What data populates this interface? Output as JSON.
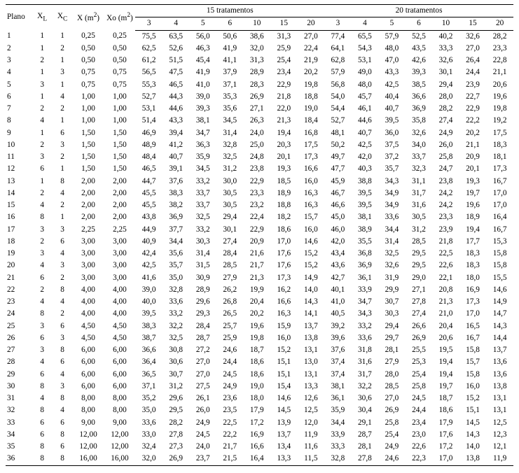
{
  "header": {
    "plano": "Plano",
    "xl": "X",
    "xl_sub": "L",
    "xc": "X",
    "xc_sub": "C",
    "xm": "X (m",
    "xm_sup": "2",
    "xm_tail": ")",
    "xo": "Xo (m",
    "xo_sup": "2",
    "xo_tail": ")",
    "g15": "15 tratamentos",
    "g20": "20 tratamentos",
    "sub": [
      "3",
      "4",
      "5",
      "6",
      "10",
      "15",
      "20",
      "3",
      "4",
      "5",
      "6",
      "10",
      "15",
      "20"
    ]
  },
  "rows": [
    {
      "plano": "1",
      "xl": "1",
      "xc": "1",
      "xm": "0,25",
      "xo": "0,25",
      "v": [
        "75,5",
        "63,5",
        "56,0",
        "50,6",
        "38,6",
        "31,3",
        "27,0",
        "77,4",
        "65,5",
        "57,9",
        "52,5",
        "40,2",
        "32,6",
        "28,2"
      ]
    },
    {
      "plano": "2",
      "xl": "1",
      "xc": "2",
      "xm": "0,50",
      "xo": "0,50",
      "v": [
        "62,5",
        "52,6",
        "46,3",
        "41,9",
        "32,0",
        "25,9",
        "22,4",
        "64,1",
        "54,3",
        "48,0",
        "43,5",
        "33,3",
        "27,0",
        "23,3"
      ]
    },
    {
      "plano": "3",
      "xl": "2",
      "xc": "1",
      "xm": "0,50",
      "xo": "0,50",
      "v": [
        "61,2",
        "51,5",
        "45,4",
        "41,1",
        "31,3",
        "25,4",
        "21,9",
        "62,8",
        "53,1",
        "47,0",
        "42,6",
        "32,6",
        "26,4",
        "22,8"
      ]
    },
    {
      "plano": "4",
      "xl": "1",
      "xc": "3",
      "xm": "0,75",
      "xo": "0,75",
      "v": [
        "56,5",
        "47,5",
        "41,9",
        "37,9",
        "28,9",
        "23,4",
        "20,2",
        "57,9",
        "49,0",
        "43,3",
        "39,3",
        "30,1",
        "24,4",
        "21,1"
      ]
    },
    {
      "plano": "5",
      "xl": "3",
      "xc": "1",
      "xm": "0,75",
      "xo": "0,75",
      "v": [
        "55,3",
        "46,5",
        "41,0",
        "37,1",
        "28,3",
        "22,9",
        "19,8",
        "56,8",
        "48,0",
        "42,5",
        "38,5",
        "29,4",
        "23,9",
        "20,6"
      ]
    },
    {
      "plano": "6",
      "xl": "1",
      "xc": "4",
      "xm": "1,00",
      "xo": "1,00",
      "v": [
        "52,7",
        "44,3",
        "39,0",
        "35,3",
        "26,9",
        "21,8",
        "18,8",
        "54,0",
        "45,7",
        "40,4",
        "36,6",
        "28,0",
        "22,7",
        "19,6"
      ]
    },
    {
      "plano": "7",
      "xl": "2",
      "xc": "2",
      "xm": "1,00",
      "xo": "1,00",
      "v": [
        "53,1",
        "44,6",
        "39,3",
        "35,6",
        "27,1",
        "22,0",
        "19,0",
        "54,4",
        "46,1",
        "40,7",
        "36,9",
        "28,2",
        "22,9",
        "19,8"
      ]
    },
    {
      "plano": "8",
      "xl": "4",
      "xc": "1",
      "xm": "1,00",
      "xo": "1,00",
      "v": [
        "51,4",
        "43,3",
        "38,1",
        "34,5",
        "26,3",
        "21,3",
        "18,4",
        "52,7",
        "44,6",
        "39,5",
        "35,8",
        "27,4",
        "22,2",
        "19,2"
      ]
    },
    {
      "plano": "9",
      "xl": "1",
      "xc": "6",
      "xm": "1,50",
      "xo": "1,50",
      "v": [
        "46,9",
        "39,4",
        "34,7",
        "31,4",
        "24,0",
        "19,4",
        "16,8",
        "48,1",
        "40,7",
        "36,0",
        "32,6",
        "24,9",
        "20,2",
        "17,5"
      ]
    },
    {
      "plano": "10",
      "xl": "2",
      "xc": "3",
      "xm": "1,50",
      "xo": "1,50",
      "v": [
        "48,9",
        "41,2",
        "36,3",
        "32,8",
        "25,0",
        "20,3",
        "17,5",
        "50,2",
        "42,5",
        "37,5",
        "34,0",
        "26,0",
        "21,1",
        "18,3"
      ]
    },
    {
      "plano": "11",
      "xl": "3",
      "xc": "2",
      "xm": "1,50",
      "xo": "1,50",
      "v": [
        "48,4",
        "40,7",
        "35,9",
        "32,5",
        "24,8",
        "20,1",
        "17,3",
        "49,7",
        "42,0",
        "37,2",
        "33,7",
        "25,8",
        "20,9",
        "18,1"
      ]
    },
    {
      "plano": "12",
      "xl": "6",
      "xc": "1",
      "xm": "1,50",
      "xo": "1,50",
      "v": [
        "46,5",
        "39,1",
        "34,5",
        "31,2",
        "23,8",
        "19,3",
        "16,6",
        "47,7",
        "40,3",
        "35,7",
        "32,3",
        "24,7",
        "20,1",
        "17,3"
      ]
    },
    {
      "plano": "13",
      "xl": "1",
      "xc": "8",
      "xm": "2,00",
      "xo": "2,00",
      "v": [
        "44,7",
        "37,6",
        "33,2",
        "30,0",
        "22,9",
        "18,5",
        "16,0",
        "45,9",
        "38,8",
        "34,3",
        "31,1",
        "23,8",
        "19,3",
        "16,7"
      ]
    },
    {
      "plano": "14",
      "xl": "2",
      "xc": "4",
      "xm": "2,00",
      "xo": "2,00",
      "v": [
        "45,5",
        "38,3",
        "33,7",
        "30,5",
        "23,3",
        "18,9",
        "16,3",
        "46,7",
        "39,5",
        "34,9",
        "31,7",
        "24,2",
        "19,7",
        "17,0"
      ]
    },
    {
      "plano": "15",
      "xl": "4",
      "xc": "2",
      "xm": "2,00",
      "xo": "2,00",
      "v": [
        "45,5",
        "38,2",
        "33,7",
        "30,5",
        "23,2",
        "18,8",
        "16,3",
        "46,6",
        "39,5",
        "34,9",
        "31,6",
        "24,2",
        "19,6",
        "17,0"
      ]
    },
    {
      "plano": "16",
      "xl": "8",
      "xc": "1",
      "xm": "2,00",
      "xo": "2,00",
      "v": [
        "43,8",
        "36,9",
        "32,5",
        "29,4",
        "22,4",
        "18,2",
        "15,7",
        "45,0",
        "38,1",
        "33,6",
        "30,5",
        "23,3",
        "18,9",
        "16,4"
      ]
    },
    {
      "plano": "17",
      "xl": "3",
      "xc": "3",
      "xm": "2,25",
      "xo": "2,25",
      "v": [
        "44,9",
        "37,7",
        "33,2",
        "30,1",
        "22,9",
        "18,6",
        "16,0",
        "46,0",
        "38,9",
        "34,4",
        "31,2",
        "23,9",
        "19,4",
        "16,7"
      ]
    },
    {
      "plano": "18",
      "xl": "2",
      "xc": "6",
      "xm": "3,00",
      "xo": "3,00",
      "v": [
        "40,9",
        "34,4",
        "30,3",
        "27,4",
        "20,9",
        "17,0",
        "14,6",
        "42,0",
        "35,5",
        "31,4",
        "28,5",
        "21,8",
        "17,7",
        "15,3"
      ]
    },
    {
      "plano": "19",
      "xl": "3",
      "xc": "4",
      "xm": "3,00",
      "xo": "3,00",
      "v": [
        "42,4",
        "35,6",
        "31,4",
        "28,4",
        "21,6",
        "17,6",
        "15,2",
        "43,4",
        "36,8",
        "32,5",
        "29,5",
        "22,5",
        "18,3",
        "15,8"
      ]
    },
    {
      "plano": "20",
      "xl": "4",
      "xc": "3",
      "xm": "3,00",
      "xo": "3,00",
      "v": [
        "42,5",
        "35,7",
        "31,5",
        "28,5",
        "21,7",
        "17,6",
        "15,2",
        "43,6",
        "36,9",
        "32,6",
        "29,5",
        "22,6",
        "18,3",
        "15,8"
      ]
    },
    {
      "plano": "21",
      "xl": "6",
      "xc": "2",
      "xm": "3,00",
      "xo": "3,00",
      "v": [
        "41,6",
        "35,0",
        "30,9",
        "27,9",
        "21,3",
        "17,3",
        "14,9",
        "42,7",
        "36,1",
        "31,9",
        "29,0",
        "22,1",
        "18,0",
        "15,5"
      ]
    },
    {
      "plano": "22",
      "xl": "2",
      "xc": "8",
      "xm": "4,00",
      "xo": "4,00",
      "v": [
        "39,0",
        "32,8",
        "28,9",
        "26,2",
        "19,9",
        "16,2",
        "14,0",
        "40,1",
        "33,9",
        "29,9",
        "27,1",
        "20,8",
        "16,9",
        "14,6"
      ]
    },
    {
      "plano": "23",
      "xl": "4",
      "xc": "4",
      "xm": "4,00",
      "xo": "4,00",
      "v": [
        "40,0",
        "33,6",
        "29,6",
        "26,8",
        "20,4",
        "16,6",
        "14,3",
        "41,0",
        "34,7",
        "30,7",
        "27,8",
        "21,3",
        "17,3",
        "14,9"
      ]
    },
    {
      "plano": "24",
      "xl": "8",
      "xc": "2",
      "xm": "4,00",
      "xo": "4,00",
      "v": [
        "39,5",
        "33,2",
        "29,3",
        "26,5",
        "20,2",
        "16,3",
        "14,1",
        "40,5",
        "34,3",
        "30,3",
        "27,4",
        "21,0",
        "17,0",
        "14,7"
      ]
    },
    {
      "plano": "25",
      "xl": "3",
      "xc": "6",
      "xm": "4,50",
      "xo": "4,50",
      "v": [
        "38,3",
        "32,2",
        "28,4",
        "25,7",
        "19,6",
        "15,9",
        "13,7",
        "39,2",
        "33,2",
        "29,4",
        "26,6",
        "20,4",
        "16,5",
        "14,3"
      ]
    },
    {
      "plano": "26",
      "xl": "6",
      "xc": "3",
      "xm": "4,50",
      "xo": "4,50",
      "v": [
        "38,7",
        "32,5",
        "28,7",
        "25,9",
        "19,8",
        "16,0",
        "13,8",
        "39,6",
        "33,6",
        "29,7",
        "26,9",
        "20,6",
        "16,7",
        "14,4"
      ]
    },
    {
      "plano": "27",
      "xl": "3",
      "xc": "8",
      "xm": "6,00",
      "xo": "6,00",
      "v": [
        "36,6",
        "30,8",
        "27,2",
        "24,6",
        "18,7",
        "15,2",
        "13,1",
        "37,6",
        "31,8",
        "28,1",
        "25,5",
        "19,5",
        "15,8",
        "13,7"
      ]
    },
    {
      "plano": "28",
      "xl": "4",
      "xc": "6",
      "xm": "6,00",
      "xo": "6,00",
      "v": [
        "36,4",
        "30,6",
        "27,0",
        "24,4",
        "18,6",
        "15,1",
        "13,0",
        "37,4",
        "31,6",
        "27,9",
        "25,3",
        "19,4",
        "15,7",
        "13,6"
      ]
    },
    {
      "plano": "29",
      "xl": "6",
      "xc": "4",
      "xm": "6,00",
      "xo": "6,00",
      "v": [
        "36,5",
        "30,7",
        "27,0",
        "24,5",
        "18,6",
        "15,1",
        "13,1",
        "37,4",
        "31,7",
        "28,0",
        "25,4",
        "19,4",
        "15,8",
        "13,6"
      ]
    },
    {
      "plano": "30",
      "xl": "8",
      "xc": "3",
      "xm": "6,00",
      "xo": "6,00",
      "v": [
        "37,1",
        "31,2",
        "27,5",
        "24,9",
        "19,0",
        "15,4",
        "13,3",
        "38,1",
        "32,2",
        "28,5",
        "25,8",
        "19,7",
        "16,0",
        "13,8"
      ]
    },
    {
      "plano": "31",
      "xl": "4",
      "xc": "8",
      "xm": "8,00",
      "xo": "8,00",
      "v": [
        "35,2",
        "29,6",
        "26,1",
        "23,6",
        "18,0",
        "14,6",
        "12,6",
        "36,1",
        "30,6",
        "27,0",
        "24,5",
        "18,7",
        "15,2",
        "13,1"
      ]
    },
    {
      "plano": "32",
      "xl": "8",
      "xc": "4",
      "xm": "8,00",
      "xo": "8,00",
      "v": [
        "35,0",
        "29,5",
        "26,0",
        "23,5",
        "17,9",
        "14,5",
        "12,5",
        "35,9",
        "30,4",
        "26,9",
        "24,4",
        "18,6",
        "15,1",
        "13,1"
      ]
    },
    {
      "plano": "33",
      "xl": "6",
      "xc": "6",
      "xm": "9,00",
      "xo": "9,00",
      "v": [
        "33,6",
        "28,2",
        "24,9",
        "22,5",
        "17,2",
        "13,9",
        "12,0",
        "34,4",
        "29,1",
        "25,8",
        "23,4",
        "17,9",
        "14,5",
        "12,5"
      ]
    },
    {
      "plano": "34",
      "xl": "6",
      "xc": "8",
      "xm": "12,00",
      "xo": "12,00",
      "v": [
        "33,0",
        "27,8",
        "24,5",
        "22,2",
        "16,9",
        "13,7",
        "11,9",
        "33,9",
        "28,7",
        "25,4",
        "23,0",
        "17,6",
        "14,3",
        "12,3"
      ]
    },
    {
      "plano": "35",
      "xl": "8",
      "xc": "6",
      "xm": "12,00",
      "xo": "12,00",
      "v": [
        "32,4",
        "27,3",
        "24,0",
        "21,7",
        "16,6",
        "13,4",
        "11,6",
        "33,3",
        "28,1",
        "24,9",
        "22,6",
        "17,2",
        "14,0",
        "12,1"
      ]
    },
    {
      "plano": "36",
      "xl": "8",
      "xc": "8",
      "xm": "16,00",
      "xo": "16,00",
      "v": [
        "32,0",
        "26,9",
        "23,7",
        "21,5",
        "16,4",
        "13,3",
        "11,5",
        "32,8",
        "27,8",
        "24,6",
        "22,3",
        "17,0",
        "13,8",
        "11,9"
      ]
    }
  ]
}
